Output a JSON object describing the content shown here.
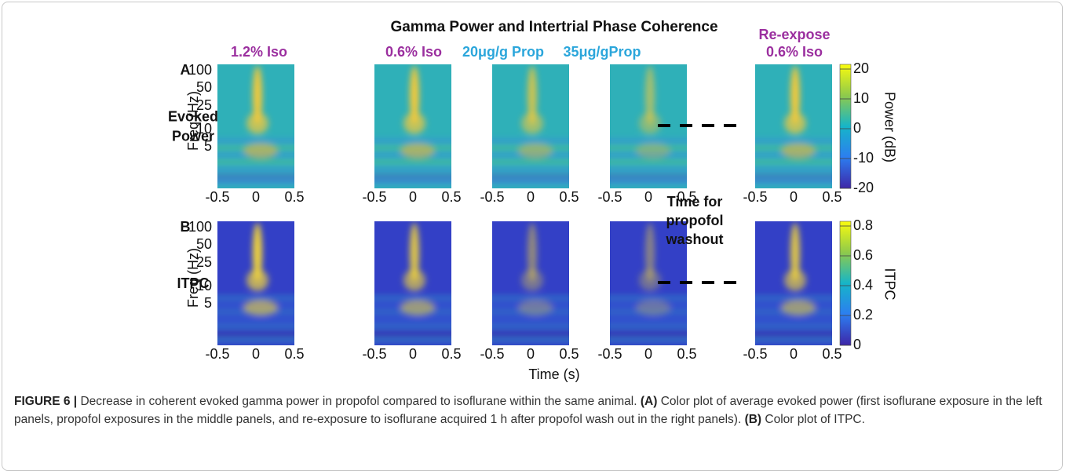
{
  "figure": {
    "title": "Gamma Power and Intertrial Phase Coherence",
    "columns": [
      {
        "lines": [
          "1.2% Iso"
        ],
        "color": "#9b2f9f"
      },
      {
        "lines": [
          "0.6% Iso"
        ],
        "color": "#9b2f9f"
      },
      {
        "lines": [
          "20μg/g Prop"
        ],
        "color": "#2ba6db"
      },
      {
        "lines": [
          "35μg/gProp"
        ],
        "color": "#2ba6db"
      },
      {
        "lines": [
          "Re-expose",
          "0.6% Iso"
        ],
        "color": "#9b2f9f"
      }
    ],
    "rows": [
      {
        "letter": "A",
        "lines": [
          "Evoked",
          "Power"
        ]
      },
      {
        "letter": "B",
        "lines": [
          "ITPC"
        ]
      }
    ],
    "y_axis": {
      "label": "Freq (Hz)",
      "ticks": [
        "100",
        "50",
        "25",
        "10",
        "5"
      ]
    },
    "x_axis": {
      "label": "Time (s)",
      "ticks": [
        "-0.5",
        "0",
        "0.5"
      ]
    },
    "gap_note": [
      "Time for",
      "propofol",
      "washout"
    ],
    "colorbars": [
      {
        "label": "Power (dB)",
        "ticks": [
          "20",
          "10",
          "0",
          "-10",
          "-20"
        ]
      },
      {
        "label": "ITPC",
        "ticks": [
          "0.8",
          "0.6",
          "0.4",
          "0.2",
          "0"
        ]
      }
    ]
  },
  "caption": [
    {
      "text": "FIGURE 6 |",
      "bold": true
    },
    {
      "text": "Decrease in coherent evoked gamma power in propofol compared to isoflurane within the same animal.",
      "bold": false
    },
    {
      "text": "(A)",
      "bold": true
    },
    {
      "text": "Color plot of average evoked power (first isoflurane exposure in the left panels, propofol exposures in the middle panels, and re-exposure to isoflurane acquired 1 h after propofol wash out in the right panels).",
      "bold": false
    },
    {
      "text": "(B)",
      "bold": true
    },
    {
      "text": "Color plot of ITPC.",
      "bold": false
    }
  ]
}
